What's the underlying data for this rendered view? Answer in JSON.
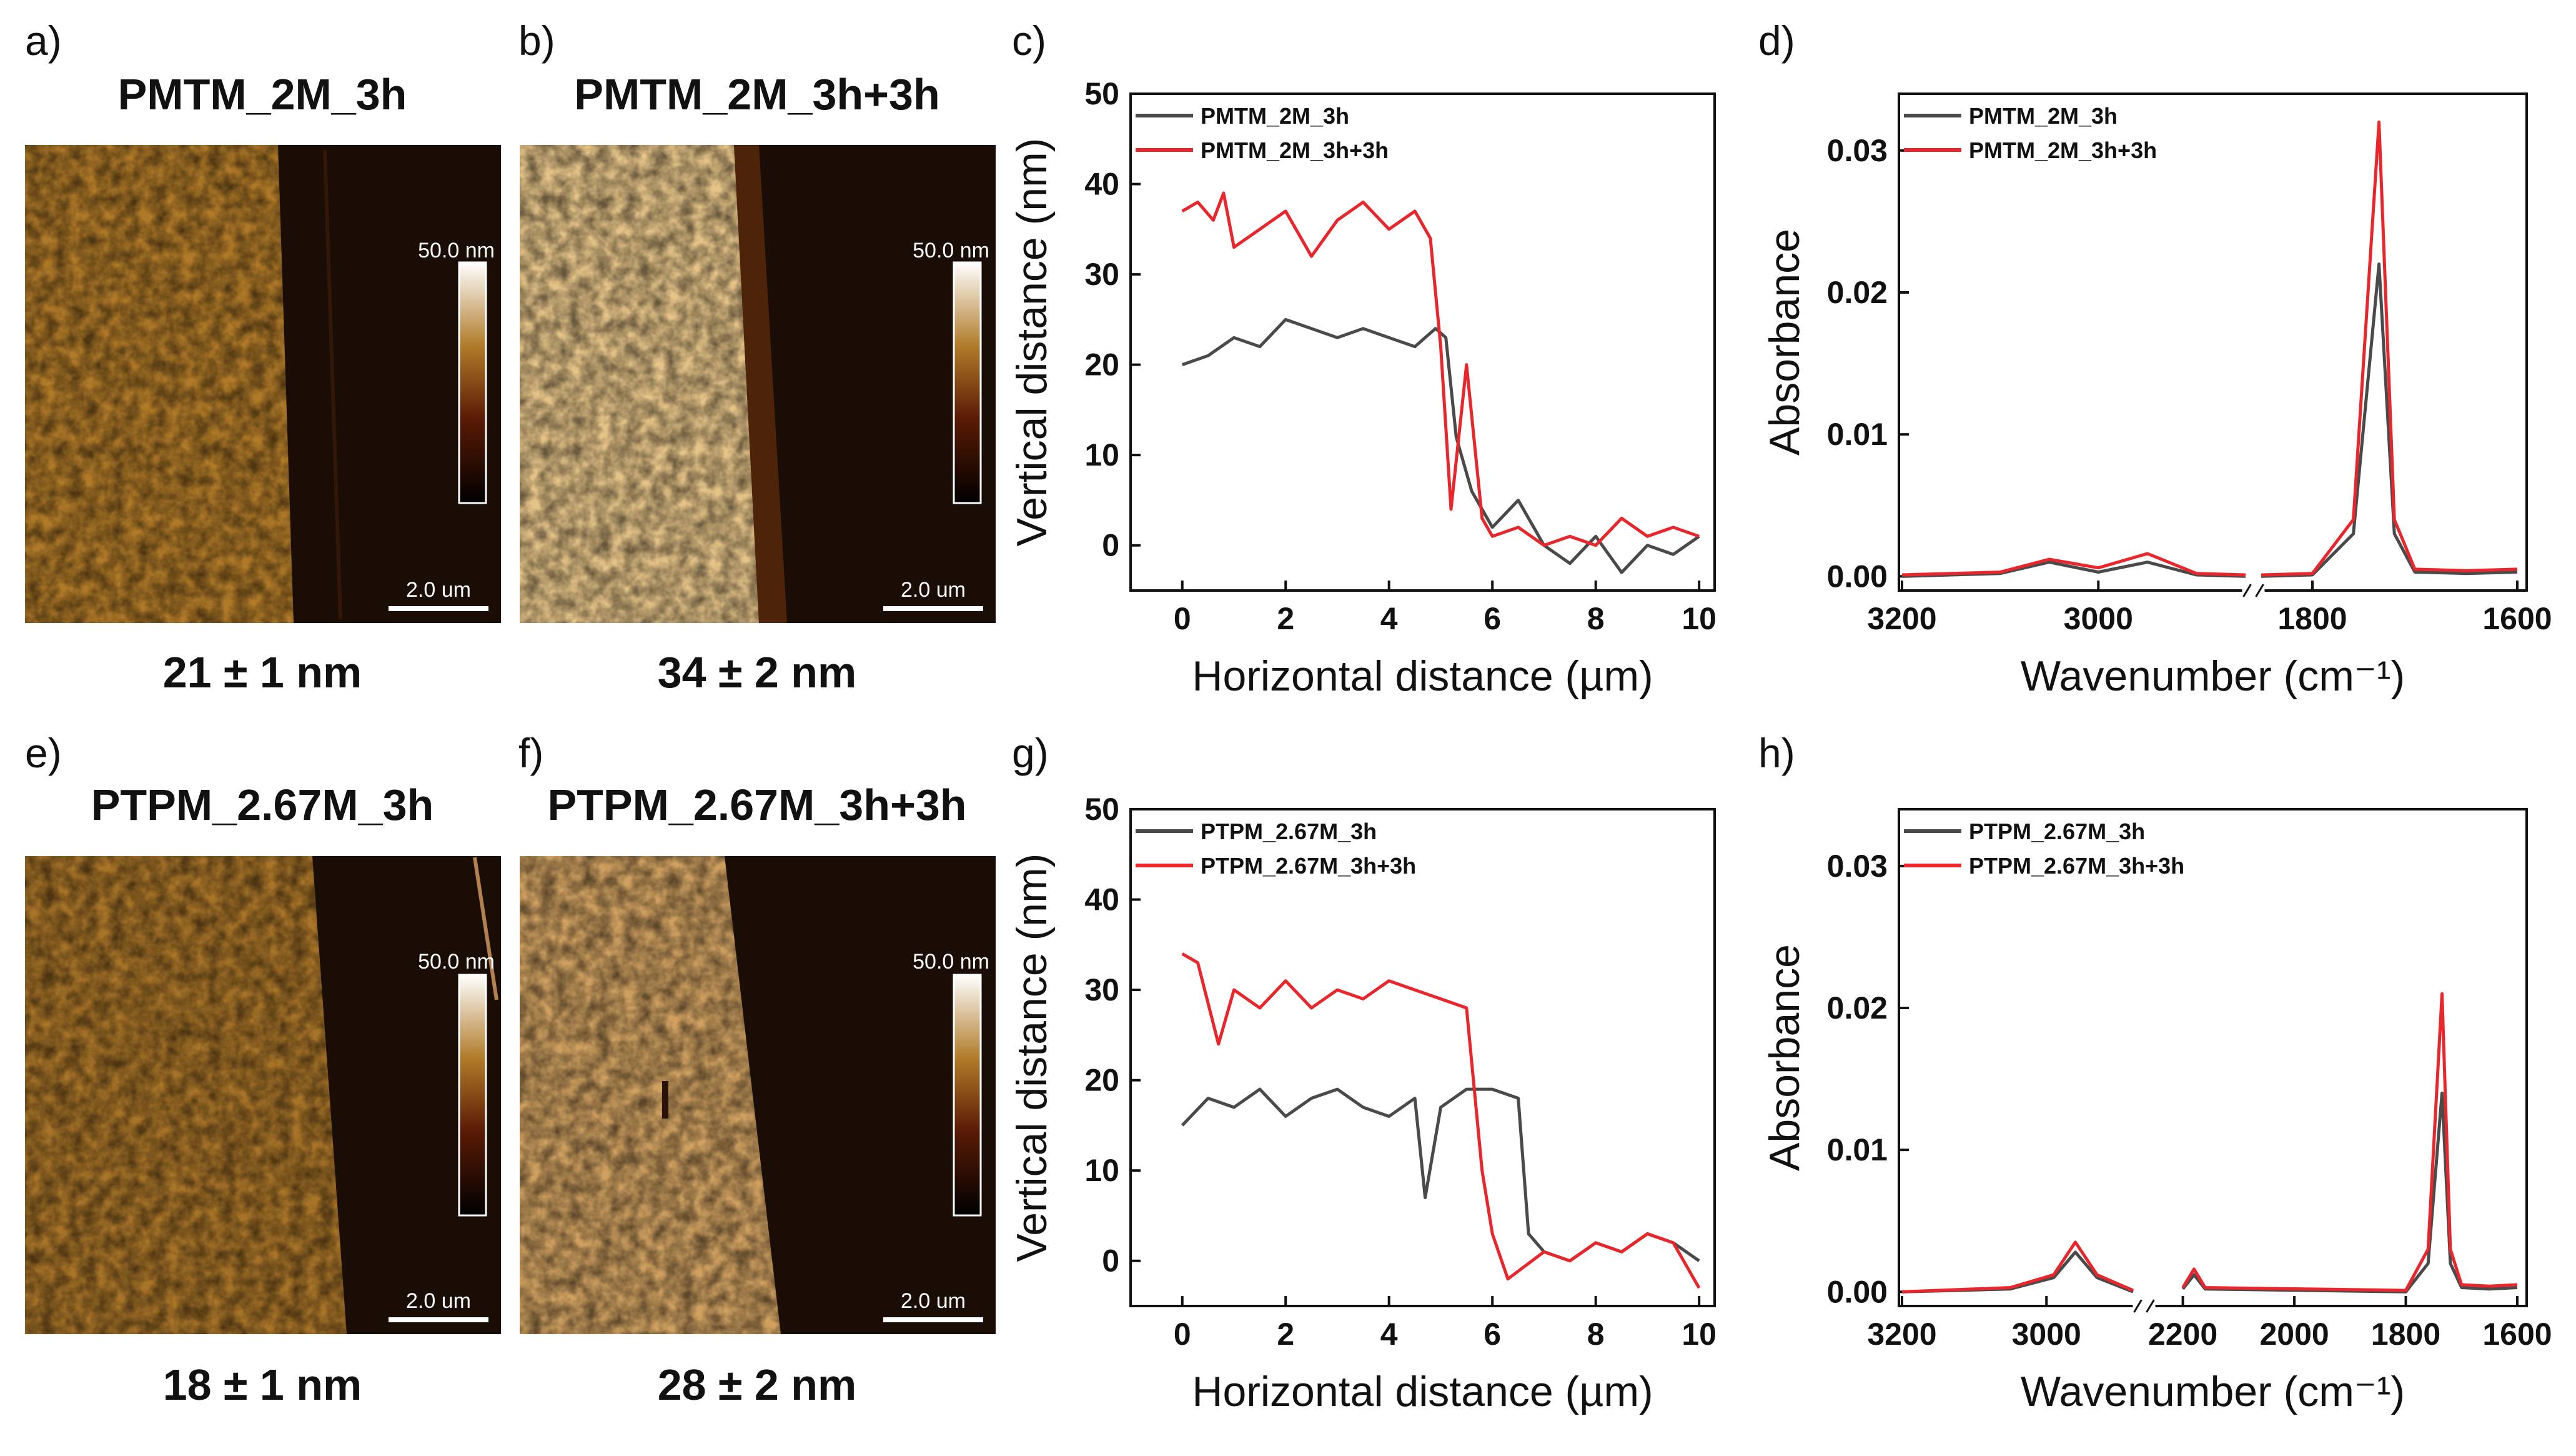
{
  "afm_panels": [
    {
      "label": "a)",
      "title": "PMTM_2M_3h",
      "thickness": "21 ± 1 nm",
      "scale_max": "50.0 nm",
      "scale_bar": "2.0 um",
      "brightness": 0.62
    },
    {
      "label": "b)",
      "title": "PMTM_2M_3h+3h",
      "thickness": "34 ± 2 nm",
      "scale_max": "50.0 nm",
      "scale_bar": "2.0 um",
      "brightness": 0.82
    },
    {
      "label": "e)",
      "title": "PTPM_2.67M_3h",
      "thickness": "18 ± 1 nm",
      "scale_max": "50.0 nm",
      "scale_bar": "2.0 um",
      "brightness": 0.6
    },
    {
      "label": "f)",
      "title": "PTPM_2.67M_3h+3h",
      "thickness": "28 ± 2 nm",
      "scale_max": "50.0 nm",
      "scale_bar": "2.0 um",
      "brightness": 0.74
    }
  ],
  "colors": {
    "series_gray": "#4a4a4a",
    "series_red": "#e8262c",
    "afm_film": "#b07a28",
    "afm_substrate": "#1a0d06"
  },
  "chart_data": [
    {
      "panel": "c)",
      "type": "line",
      "xlabel": "Horizontal distance (µm)",
      "ylabel": "Vertical distance (nm)",
      "xlim": [
        -1,
        10.3
      ],
      "ylim": [
        -5,
        50
      ],
      "xticks": [
        "0",
        "2",
        "4",
        "6",
        "8",
        "10"
      ],
      "yticks": [
        "0",
        "10",
        "20",
        "30",
        "40",
        "50"
      ],
      "legend_position": "top-left",
      "series": [
        {
          "name": "PMTM_2M_3h",
          "x": [
            0,
            0.5,
            1,
            1.5,
            2,
            2.5,
            3,
            3.5,
            4,
            4.5,
            4.9,
            5.1,
            5.3,
            5.6,
            6,
            6.5,
            7,
            7.5,
            8,
            8.5,
            9,
            9.5,
            10
          ],
          "y": [
            20,
            21,
            23,
            22,
            25,
            24,
            23,
            24,
            23,
            22,
            24,
            23,
            12,
            6,
            2,
            5,
            0,
            -2,
            1,
            -3,
            0,
            -1,
            1
          ]
        },
        {
          "name": "PMTM_2M_3h+3h",
          "x": [
            0,
            0.3,
            0.6,
            0.8,
            1,
            1.5,
            2,
            2.5,
            3,
            3.5,
            4,
            4.5,
            4.8,
            5,
            5.2,
            5.5,
            5.8,
            6,
            6.5,
            7,
            7.5,
            8,
            8.5,
            9,
            9.5,
            10
          ],
          "y": [
            37,
            38,
            36,
            39,
            33,
            35,
            37,
            32,
            36,
            38,
            35,
            37,
            34,
            22,
            4,
            20,
            3,
            1,
            2,
            0,
            1,
            0,
            3,
            1,
            2,
            1
          ]
        }
      ]
    },
    {
      "panel": "d)",
      "type": "line",
      "xlabel": "Wavenumber (cm⁻¹)",
      "ylabel": "Absorbance",
      "ylim": [
        -0.001,
        0.034
      ],
      "xticks": [
        "3200",
        "3000",
        "1800",
        "1600"
      ],
      "yticks": [
        "0.00",
        "0.01",
        "0.02",
        "0.03"
      ],
      "axis_break": true,
      "legend_position": "top-left",
      "series": [
        {
          "name": "PMTM_2M_3h",
          "x": [
            3200,
            3100,
            3050,
            3000,
            2950,
            2900,
            2850,
            1850,
            1800,
            1760,
            1735,
            1720,
            1700,
            1650,
            1600
          ],
          "y": [
            0,
            0.0002,
            0.001,
            0.0003,
            0.001,
            0.0001,
            0,
            0,
            0.0001,
            0.003,
            0.022,
            0.003,
            0.0003,
            0.0002,
            0.0003
          ]
        },
        {
          "name": "PMTM_2M_3h+3h",
          "x": [
            3200,
            3100,
            3050,
            3000,
            2950,
            2900,
            2850,
            1850,
            1800,
            1760,
            1735,
            1720,
            1700,
            1650,
            1600
          ],
          "y": [
            0.0001,
            0.0003,
            0.0012,
            0.0006,
            0.0016,
            0.0002,
            0.0001,
            0.0001,
            0.0002,
            0.004,
            0.032,
            0.004,
            0.0005,
            0.0004,
            0.0005
          ]
        }
      ]
    },
    {
      "panel": "g)",
      "type": "line",
      "xlabel": "Horizontal distance (µm)",
      "ylabel": "Vertical distance (nm)",
      "xlim": [
        -1,
        10.3
      ],
      "ylim": [
        -5,
        50
      ],
      "xticks": [
        "0",
        "2",
        "4",
        "6",
        "8",
        "10"
      ],
      "yticks": [
        "0",
        "10",
        "20",
        "30",
        "40",
        "50"
      ],
      "legend_position": "top-left",
      "series": [
        {
          "name": "PTPM_2.67M_3h",
          "x": [
            0,
            0.5,
            1,
            1.5,
            2,
            2.5,
            3,
            3.5,
            4,
            4.5,
            4.7,
            5,
            5.5,
            6,
            6.5,
            6.7,
            7,
            7.5,
            8,
            8.5,
            9,
            9.5,
            10
          ],
          "y": [
            15,
            18,
            17,
            19,
            16,
            18,
            19,
            17,
            16,
            18,
            7,
            17,
            19,
            19,
            18,
            3,
            1,
            0,
            2,
            1,
            3,
            2,
            0
          ]
        },
        {
          "name": "PTPM_2.67M_3h+3h",
          "x": [
            0,
            0.3,
            0.7,
            1,
            1.5,
            2,
            2.5,
            3,
            3.5,
            4,
            4.5,
            5,
            5.5,
            5.8,
            6,
            6.3,
            7,
            7.5,
            8,
            8.5,
            9,
            9.5,
            10
          ],
          "y": [
            34,
            33,
            24,
            30,
            28,
            31,
            28,
            30,
            29,
            31,
            30,
            29,
            28,
            10,
            3,
            -2,
            1,
            0,
            2,
            1,
            3,
            2,
            -3
          ]
        }
      ]
    },
    {
      "panel": "h)",
      "type": "line",
      "xlabel": "Wavenumber (cm⁻¹)",
      "ylabel": "Absorbance",
      "ylim": [
        -0.001,
        0.034
      ],
      "xticks": [
        "3200",
        "3000",
        "2200",
        "2000",
        "1800",
        "1600"
      ],
      "yticks": [
        "0.00",
        "0.01",
        "0.02",
        "0.03"
      ],
      "axis_break": true,
      "legend_position": "top-left",
      "series": [
        {
          "name": "PTPM_2.67M_3h",
          "x": [
            3200,
            3050,
            2990,
            2960,
            2930,
            2880,
            2200,
            2180,
            2160,
            1800,
            1760,
            1735,
            1720,
            1700,
            1650,
            1600
          ],
          "y": [
            0,
            0.0002,
            0.001,
            0.0028,
            0.001,
            0,
            0.0002,
            0.0012,
            0.0002,
            0,
            0.002,
            0.014,
            0.002,
            0.0003,
            0.0002,
            0.0003
          ]
        },
        {
          "name": "PTPM_2.67M_3h+3h",
          "x": [
            3200,
            3050,
            2990,
            2960,
            2930,
            2880,
            2200,
            2180,
            2160,
            1800,
            1760,
            1735,
            1720,
            1700,
            1650,
            1600
          ],
          "y": [
            0,
            0.0003,
            0.0012,
            0.0035,
            0.0012,
            0.0001,
            0.0003,
            0.0016,
            0.0003,
            0.0001,
            0.003,
            0.021,
            0.003,
            0.0005,
            0.0004,
            0.0005
          ]
        }
      ]
    }
  ]
}
